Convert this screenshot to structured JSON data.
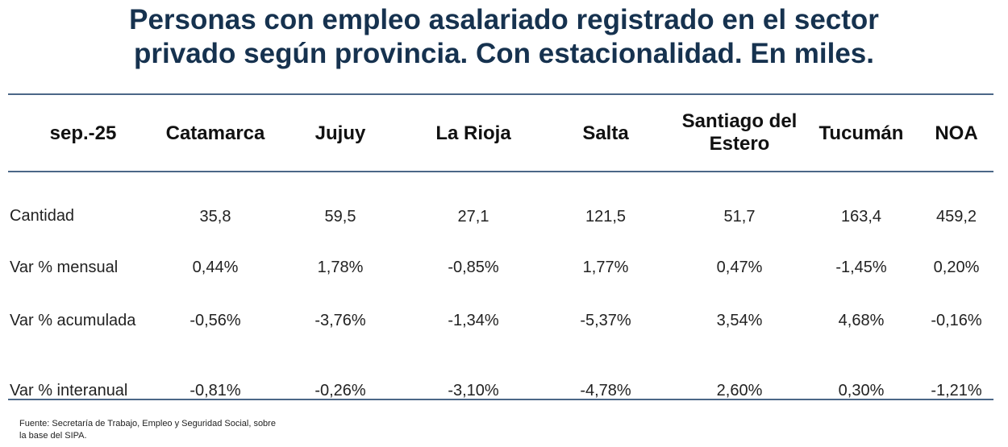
{
  "title_line1": "Personas con empleo asalariado registrado en el sector",
  "title_line2": "privado según provincia. Con estacionalidad. En miles.",
  "table": {
    "period": "sep.-25",
    "columns": [
      "Catamarca",
      "Jujuy",
      "La Rioja",
      "Salta",
      "Santiago del\nEstero",
      "Tucumán",
      "NOA"
    ],
    "rows": [
      {
        "label": "Cantidad",
        "values": [
          "35,8",
          "59,5",
          "27,1",
          "121,5",
          "51,7",
          "163,4",
          "459,2"
        ]
      },
      {
        "label": "Var % mensual",
        "values": [
          "0,44%",
          "1,78%",
          "-0,85%",
          "1,77%",
          "0,47%",
          "-1,45%",
          "0,20%"
        ]
      },
      {
        "label": "Var % acumulada",
        "values": [
          "-0,56%",
          "-3,76%",
          "-1,34%",
          "-5,37%",
          "3,54%",
          "4,68%",
          "-0,16%"
        ]
      },
      {
        "label": "Var % interanual",
        "values": [
          "-0,81%",
          "-0,26%",
          "-3,10%",
          "-4,78%",
          "2,60%",
          "0,30%",
          "-1,21%"
        ]
      }
    ]
  },
  "source_line1": "Fuente: Secretaría de Trabajo, Empleo y Seguridad Social, sobre",
  "source_line2": "la base del SIPA.",
  "colors": {
    "title": "#16324f",
    "rules": "#4b6787"
  }
}
